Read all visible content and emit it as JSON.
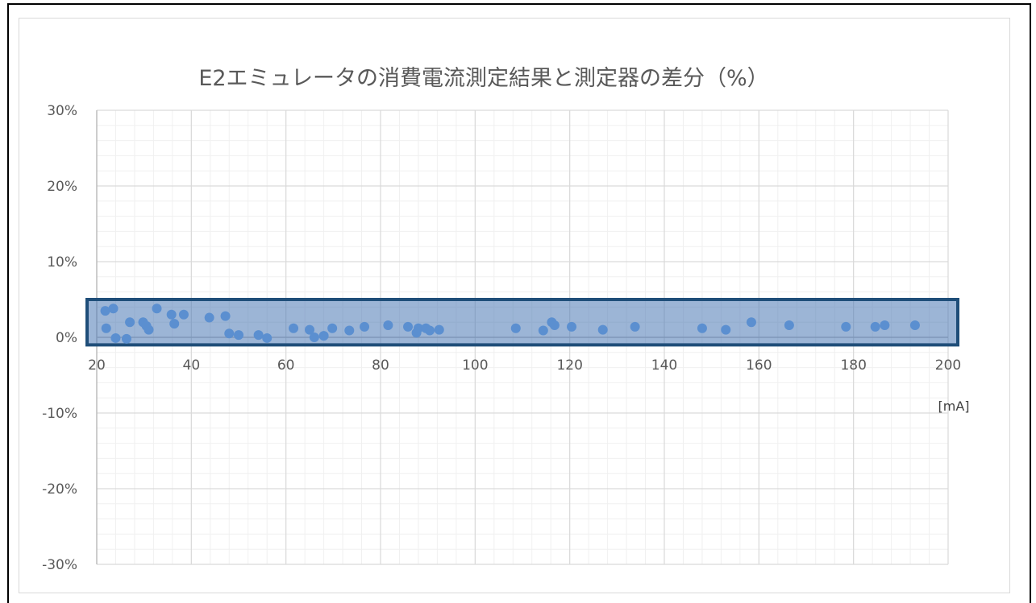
{
  "chart_data": {
    "type": "scatter",
    "title": "E2エミュレータの消費電流測定結果と測定器の差分（%）",
    "xlabel": "[mA]",
    "ylabel": "",
    "xlim": [
      20,
      200
    ],
    "ylim": [
      -30,
      30
    ],
    "x_ticks": [
      20,
      40,
      60,
      80,
      100,
      120,
      140,
      160,
      180,
      200
    ],
    "y_ticks": [
      "30%",
      "20%",
      "10%",
      "0%",
      "-10%",
      "-20%",
      "-30%"
    ],
    "y_tick_values": [
      30,
      20,
      10,
      0,
      -10,
      -20,
      -30
    ],
    "grid": "major and minor",
    "legend": "none",
    "marker_color": "#5b8fd0",
    "highlight": {
      "x_range": [
        20,
        200
      ],
      "y_range": [
        -1,
        5
      ],
      "color": "#1f4e79"
    },
    "series": [
      {
        "points": [
          [
            21.8,
            3.5
          ],
          [
            22.0,
            1.2
          ],
          [
            23.5,
            3.8
          ],
          [
            24.0,
            -0.1
          ],
          [
            26.3,
            -0.2
          ],
          [
            27.0,
            2.0
          ],
          [
            29.8,
            2.0
          ],
          [
            30.5,
            1.5
          ],
          [
            31.0,
            1.0
          ],
          [
            32.7,
            3.8
          ],
          [
            35.8,
            3.0
          ],
          [
            36.4,
            1.8
          ],
          [
            38.4,
            3.0
          ],
          [
            43.8,
            2.6
          ],
          [
            47.2,
            2.8
          ],
          [
            48.0,
            0.5
          ],
          [
            50.0,
            0.3
          ],
          [
            54.2,
            0.3
          ],
          [
            56.0,
            -0.1
          ],
          [
            61.6,
            1.2
          ],
          [
            65.0,
            1.0
          ],
          [
            66.0,
            0.0
          ],
          [
            68.0,
            0.2
          ],
          [
            69.8,
            1.2
          ],
          [
            73.4,
            0.9
          ],
          [
            76.6,
            1.4
          ],
          [
            81.6,
            1.6
          ],
          [
            85.8,
            1.4
          ],
          [
            87.6,
            0.6
          ],
          [
            88.0,
            1.2
          ],
          [
            89.6,
            1.2
          ],
          [
            90.4,
            0.9
          ],
          [
            92.4,
            1.0
          ],
          [
            108.6,
            1.2
          ],
          [
            114.4,
            0.9
          ],
          [
            116.2,
            2.0
          ],
          [
            116.8,
            1.6
          ],
          [
            120.4,
            1.4
          ],
          [
            127.0,
            1.0
          ],
          [
            133.8,
            1.4
          ],
          [
            148.0,
            1.2
          ],
          [
            153.0,
            1.0
          ],
          [
            158.4,
            2.0
          ],
          [
            166.4,
            1.6
          ],
          [
            178.4,
            1.4
          ],
          [
            184.6,
            1.4
          ],
          [
            186.6,
            1.6
          ],
          [
            193.0,
            1.6
          ]
        ]
      }
    ]
  }
}
